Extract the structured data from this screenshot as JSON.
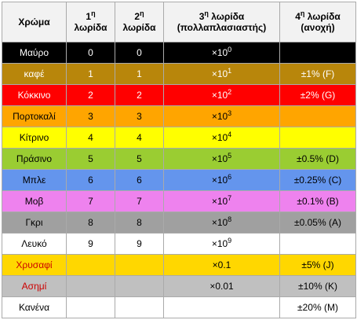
{
  "header": {
    "color": "Χρώμα",
    "band1_num": "1",
    "band1_sup": "η",
    "band1_word": "λωρίδα",
    "band2_num": "2",
    "band2_sup": "η",
    "band2_word": "λωρίδα",
    "band3_num": "3",
    "band3_sup": "η",
    "band3_word": "λωρίδα",
    "band3_note": "(πολλαπλασιαστής)",
    "band4_num": "4",
    "band4_sup": "η",
    "band4_word": "λωρίδα",
    "band4_note": "(ανοχή)"
  },
  "rows": [
    {
      "name": "Μαύρο",
      "b1": "0",
      "b2": "0",
      "mult_base": "×10",
      "mult_exp": "0",
      "tol": "",
      "bg": "#000000",
      "name_color": "#ffffff",
      "text_color": "#ffffff"
    },
    {
      "name": "καφέ",
      "b1": "1",
      "b2": "1",
      "mult_base": "×10",
      "mult_exp": "1",
      "tol": "±1% (F)",
      "bg": "#b8860b",
      "name_color": "#ffffff",
      "text_color": "#ffffff"
    },
    {
      "name": "Κόκκινο",
      "b1": "2",
      "b2": "2",
      "mult_base": "×10",
      "mult_exp": "2",
      "tol": "±2% (G)",
      "bg": "#ff0000",
      "name_color": "#ffffff",
      "text_color": "#ffffff"
    },
    {
      "name": "Πορτοκαλί",
      "b1": "3",
      "b2": "3",
      "mult_base": "×10",
      "mult_exp": "3",
      "tol": "",
      "bg": "#ffa500",
      "name_color": "#000000",
      "text_color": "#000000"
    },
    {
      "name": "Κίτρινο",
      "b1": "4",
      "b2": "4",
      "mult_base": "×10",
      "mult_exp": "4",
      "tol": "",
      "bg": "#ffff00",
      "name_color": "#000000",
      "text_color": "#000000"
    },
    {
      "name": "Πράσινο",
      "b1": "5",
      "b2": "5",
      "mult_base": "×10",
      "mult_exp": "5",
      "tol": "±0.5% (D)",
      "bg": "#9acd32",
      "name_color": "#000000",
      "text_color": "#000000"
    },
    {
      "name": "Μπλε",
      "b1": "6",
      "b2": "6",
      "mult_base": "×10",
      "mult_exp": "6",
      "tol": "±0.25% (C)",
      "bg": "#6495ed",
      "name_color": "#000000",
      "text_color": "#000000"
    },
    {
      "name": "Μοβ",
      "b1": "7",
      "b2": "7",
      "mult_base": "×10",
      "mult_exp": "7",
      "tol": "±0.1% (B)",
      "bg": "#ee82ee",
      "name_color": "#000000",
      "text_color": "#000000"
    },
    {
      "name": "Γκρι",
      "b1": "8",
      "b2": "8",
      "mult_base": "×10",
      "mult_exp": "8",
      "tol": "±0.05% (A)",
      "bg": "#a0a0a0",
      "name_color": "#000000",
      "text_color": "#000000"
    },
    {
      "name": "Λευκό",
      "b1": "9",
      "b2": "9",
      "mult_base": "×10",
      "mult_exp": "9",
      "tol": "",
      "bg": "#ffffff",
      "name_color": "#000000",
      "text_color": "#000000"
    },
    {
      "name": "Χρυσαφί",
      "b1": "",
      "b2": "",
      "mult_base": "×0.1",
      "mult_exp": "",
      "tol": "±5% (J)",
      "bg": "#ffd700",
      "name_color": "#cc0000",
      "text_color": "#000000"
    },
    {
      "name": "Ασημί",
      "b1": "",
      "b2": "",
      "mult_base": "×0.01",
      "mult_exp": "",
      "tol": "±10% (K)",
      "bg": "#c0c0c0",
      "name_color": "#cc0000",
      "text_color": "#000000"
    },
    {
      "name": "Κανένα",
      "b1": "",
      "b2": "",
      "mult_base": "",
      "mult_exp": "",
      "tol": "±20% (M)",
      "bg": "#ffffff",
      "name_color": "#000000",
      "text_color": "#000000"
    }
  ]
}
